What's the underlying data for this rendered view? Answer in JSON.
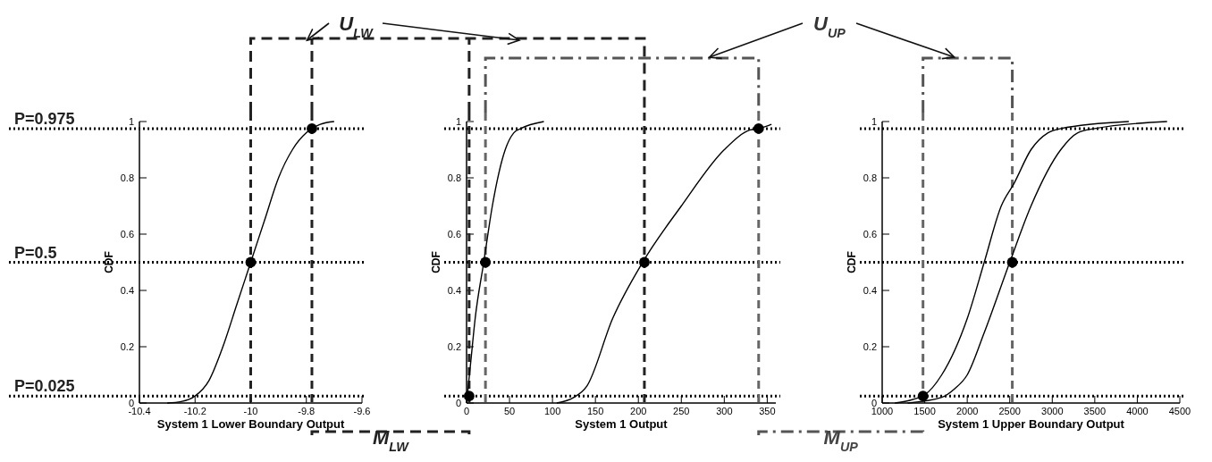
{
  "chart_data": [
    {
      "type": "line",
      "xlabel": "System 1 Lower Boundary Output",
      "ylabel": "CDF",
      "xlim": [
        -10.4,
        -9.6
      ],
      "xticks": [
        -10.4,
        -10.2,
        -10,
        -9.8,
        -9.6
      ],
      "ylim": [
        0,
        1
      ],
      "yticks": [
        0,
        0.2,
        0.4,
        0.6,
        0.8,
        1
      ],
      "grid": false,
      "series": [
        {
          "type": "line",
          "color": "#000000",
          "x": [
            -10.3,
            -10.25,
            -10.2,
            -10.15,
            -10.1,
            -10.05,
            -10,
            -9.95,
            -9.9,
            -9.85,
            -9.8,
            -9.78,
            -9.75,
            -9.7
          ],
          "values": [
            0,
            0.005,
            0.025,
            0.08,
            0.2,
            0.35,
            0.5,
            0.65,
            0.8,
            0.9,
            0.96,
            0.975,
            0.99,
            1
          ],
          "line_style": "solid",
          "marker": "none"
        },
        {
          "type": "scatter",
          "color": "#000000",
          "x": [
            -10,
            -9.78
          ],
          "values": [
            0.5,
            0.975
          ],
          "marker": "circle"
        }
      ],
      "ref_lines": [
        {
          "axis": "y",
          "value": 0.975,
          "label": "P=0.975",
          "line_style": "dotted",
          "color": "#000000"
        },
        {
          "axis": "y",
          "value": 0.5,
          "label": "P=0.5",
          "line_style": "dotted",
          "color": "#000000"
        },
        {
          "axis": "y",
          "value": 0.025,
          "label": "P=0.025",
          "line_style": "dotted",
          "color": "#000000"
        },
        {
          "axis": "x",
          "value": -10,
          "line_style": "dashed",
          "color": "#222222"
        },
        {
          "axis": "x",
          "value": -9.78,
          "line_style": "dashed",
          "color": "#222222"
        }
      ],
      "annotations": [
        "U$_{LW}$",
        "M$_{LW}$"
      ]
    },
    {
      "type": "line",
      "xlabel": "System 1 Output",
      "ylabel": "CDF",
      "xlim": [
        0,
        360
      ],
      "xticks": [
        0,
        50,
        100,
        150,
        200,
        250,
        300,
        350
      ],
      "ylim": [
        0,
        1
      ],
      "yticks": [
        0,
        0.2,
        0.4,
        0.6,
        0.8,
        1
      ],
      "grid": false,
      "series": [
        {
          "type": "line",
          "color": "#000000",
          "x": [
            0,
            5,
            10,
            20,
            30,
            45,
            55,
            63,
            90
          ],
          "values": [
            0,
            0.15,
            0.3,
            0.5,
            0.7,
            0.9,
            0.96,
            0.975,
            1
          ],
          "line_style": "solid",
          "marker": "none"
        },
        {
          "type": "line",
          "color": "#000000",
          "x": [
            105,
            125,
            140,
            170,
            205,
            250,
            300,
            330,
            340,
            355
          ],
          "values": [
            0,
            0.02,
            0.06,
            0.3,
            0.5,
            0.7,
            0.9,
            0.97,
            0.975,
            0.99
          ],
          "line_style": "solid",
          "marker": "none"
        },
        {
          "type": "scatter",
          "color": "#000000",
          "x": [
            3,
            22,
            207,
            340
          ],
          "values": [
            0.025,
            0.5,
            0.5,
            0.975
          ],
          "marker": "circle"
        }
      ],
      "ref_lines": [
        {
          "axis": "y",
          "value": 0.975,
          "line_style": "dotted",
          "color": "#000000"
        },
        {
          "axis": "y",
          "value": 0.5,
          "line_style": "dotted",
          "color": "#000000"
        },
        {
          "axis": "y",
          "value": 0.025,
          "line_style": "dotted",
          "color": "#000000"
        },
        {
          "axis": "x",
          "value": 3,
          "line_style": "dashed",
          "color": "#222222"
        },
        {
          "axis": "x",
          "value": 22,
          "line_style": "dashed",
          "color": "#666666"
        },
        {
          "axis": "x",
          "value": 207,
          "line_style": "dashed",
          "color": "#222222"
        },
        {
          "axis": "x",
          "value": 340,
          "line_style": "dashed",
          "color": "#666666"
        }
      ],
      "annotations": [
        "U$_{UP}$",
        "M$_{UP}$"
      ]
    },
    {
      "type": "line",
      "xlabel": "System 1 Upper Boundary Output",
      "ylabel": "CDF",
      "xlim": [
        1000,
        4500
      ],
      "xticks": [
        1000,
        1500,
        2000,
        2500,
        3000,
        3500,
        4000,
        4500
      ],
      "ylim": [
        0,
        1
      ],
      "yticks": [
        0,
        0.2,
        0.4,
        0.6,
        0.8,
        1
      ],
      "grid": false,
      "series": [
        {
          "type": "line",
          "color": "#000000",
          "x": [
            1150,
            1500,
            1700,
            2000,
            2200,
            2400,
            2550,
            2750,
            2950,
            3100,
            3900
          ],
          "values": [
            0,
            0.03,
            0.1,
            0.3,
            0.5,
            0.7,
            0.78,
            0.9,
            0.96,
            0.975,
            1
          ],
          "line_style": "solid",
          "marker": "none"
        },
        {
          "type": "line",
          "color": "#000000",
          "x": [
            1300,
            1700,
            1850,
            2000,
            2200,
            2500,
            2750,
            3100,
            3300,
            3500,
            4350
          ],
          "values": [
            0,
            0.02,
            0.05,
            0.1,
            0.25,
            0.5,
            0.7,
            0.9,
            0.96,
            0.975,
            1
          ],
          "line_style": "solid",
          "marker": "none"
        },
        {
          "type": "scatter",
          "color": "#000000",
          "x": [
            1480,
            2530
          ],
          "values": [
            0.025,
            0.5
          ],
          "marker": "circle"
        }
      ],
      "ref_lines": [
        {
          "axis": "y",
          "value": 0.975,
          "line_style": "dotted",
          "color": "#000000"
        },
        {
          "axis": "y",
          "value": 0.5,
          "line_style": "dotted",
          "color": "#000000"
        },
        {
          "axis": "y",
          "value": 0.025,
          "line_style": "dotted",
          "color": "#000000"
        },
        {
          "axis": "x",
          "value": 1480,
          "line_style": "dashed",
          "color": "#666666"
        },
        {
          "axis": "x",
          "value": 2530,
          "line_style": "dashed",
          "color": "#666666"
        }
      ]
    }
  ]
}
